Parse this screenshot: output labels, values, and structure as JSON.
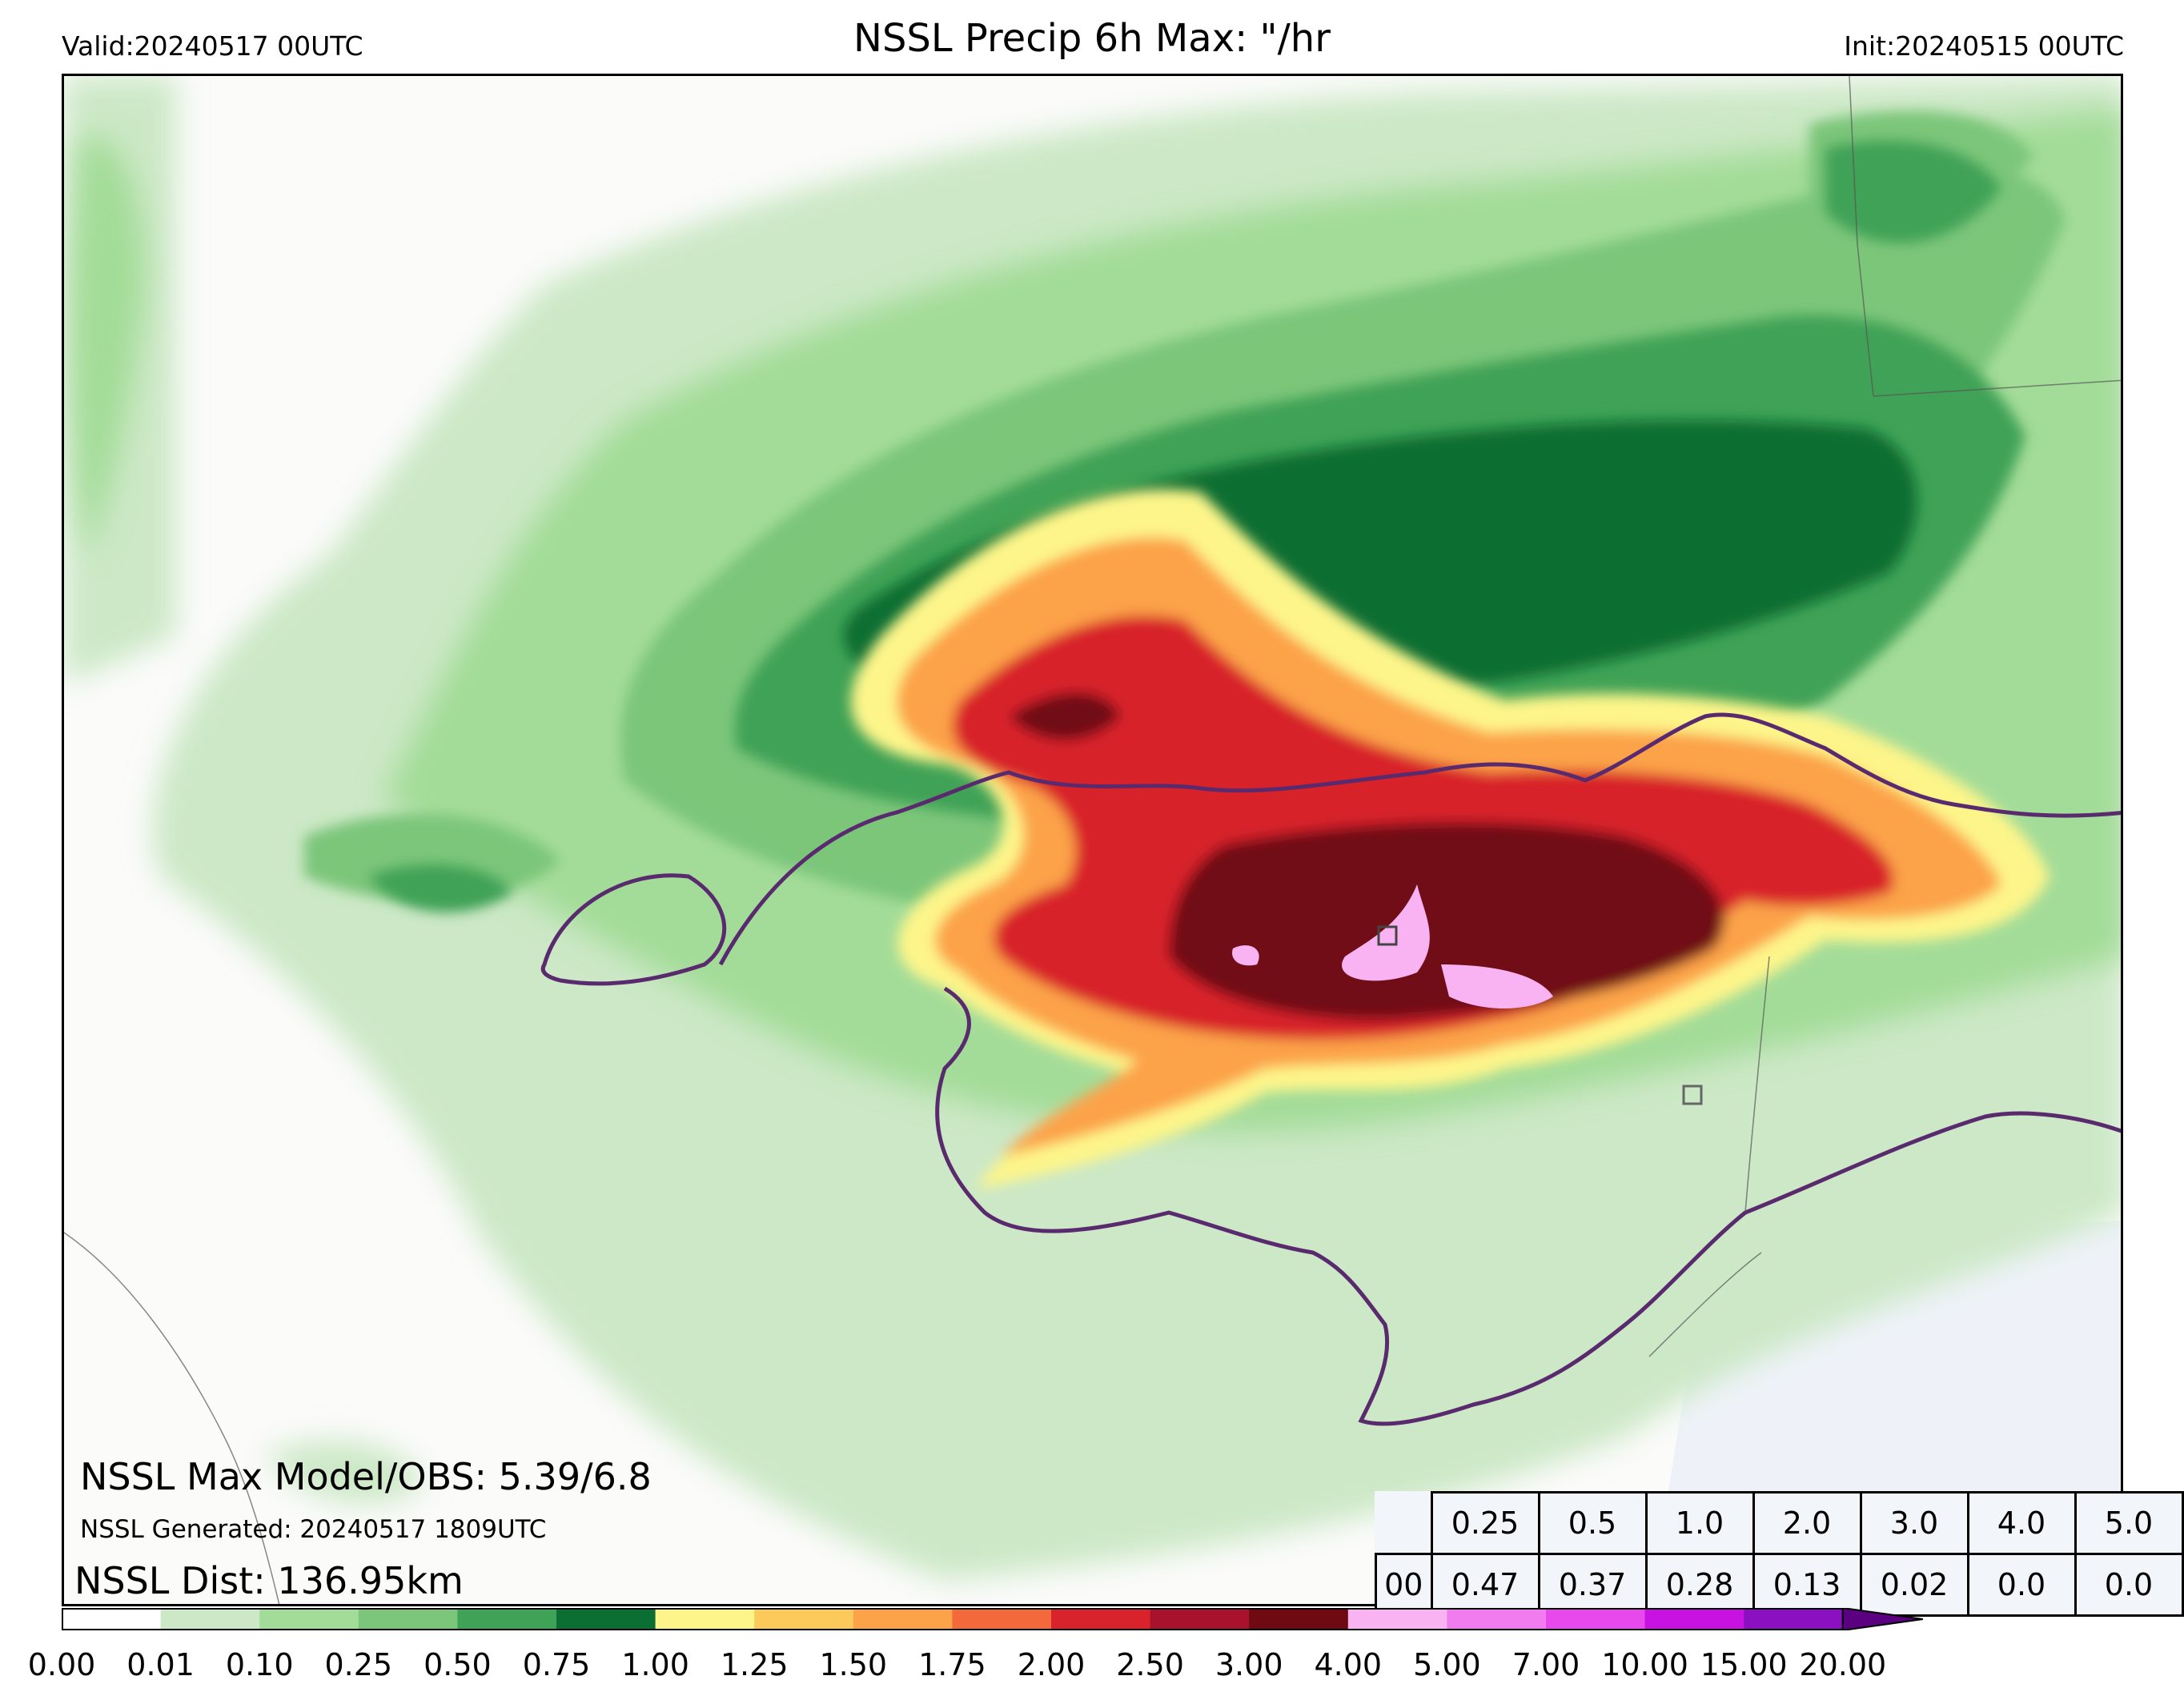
{
  "header": {
    "valid": "Valid:20240517 00UTC",
    "title": "NSSL Precip 6h Max: \"/hr",
    "init": "Init:20240515 00UTC"
  },
  "annotations": {
    "max_model_obs": "NSSL Max Model/OBS: 5.39/6.8",
    "generated": "NSSL Generated: 20240517 1809UTC",
    "dist": "NSSL Dist: 136.95km"
  },
  "stats_table": {
    "thresholds": [
      "0.25",
      "0.5",
      "1.0",
      "2.0",
      "3.0",
      "4.0",
      "5.0"
    ],
    "row_label": "00",
    "values": [
      "0.47",
      "0.37",
      "0.28",
      "0.13",
      "0.02",
      "0.0",
      "0.0"
    ]
  },
  "colorbar": {
    "ticks": [
      "0.00",
      "0.01",
      "0.10",
      "0.25",
      "0.50",
      "0.75",
      "1.00",
      "1.25",
      "1.50",
      "1.75",
      "2.00",
      "2.50",
      "3.00",
      "4.00",
      "5.00",
      "7.00",
      "10.00",
      "15.00",
      "20.00"
    ],
    "colors": [
      "#ffffff",
      "#cce8c6",
      "#a3dc98",
      "#7bc67a",
      "#3fa257",
      "#0b6e32",
      "#fdf58a",
      "#fcca5a",
      "#fca349",
      "#f4693b",
      "#d8222c",
      "#a8122c",
      "#6f0a12",
      "#f9b3f3",
      "#f17cf0",
      "#e749ec",
      "#c812e2",
      "#8a10c2"
    ],
    "extend_color": "#5a0080"
  },
  "map": {
    "ocean_color": "#eef2f8",
    "land_color": "#fbfbfa",
    "contour_color": "#5a2a6e"
  }
}
